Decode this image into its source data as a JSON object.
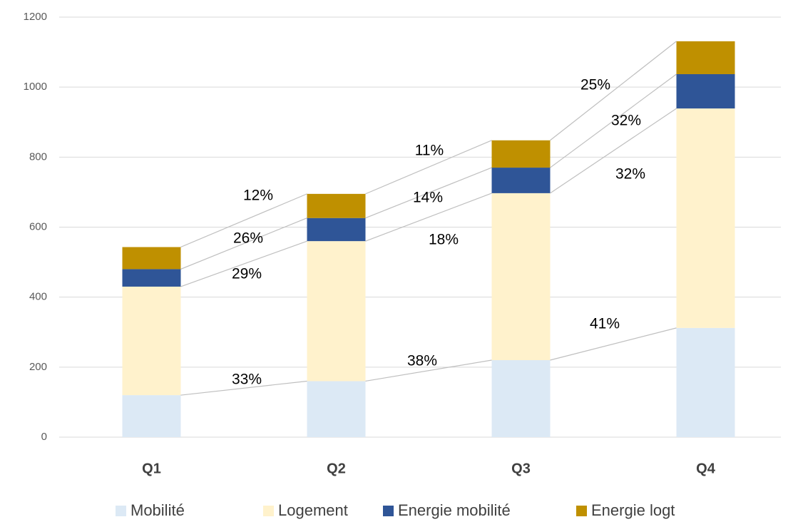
{
  "chart_data": {
    "type": "bar",
    "stacked": true,
    "categories": [
      "Q1",
      "Q2",
      "Q3",
      "Q4"
    ],
    "series": [
      {
        "name": "Mobilité",
        "color": "#dce9f5",
        "values": [
          120,
          160,
          220,
          312
        ]
      },
      {
        "name": "Logement",
        "color": "#fff2cc",
        "values": [
          310,
          400,
          477,
          627
        ]
      },
      {
        "name": "Energie mobilité",
        "color": "#2f5597",
        "values": [
          50,
          66,
          73,
          98
        ]
      },
      {
        "name": "Energie logt",
        "color": "#bf9000",
        "values": [
          63,
          69,
          78,
          94
        ]
      }
    ],
    "ylim": [
      0,
      1200
    ],
    "yticks": [
      0,
      200,
      400,
      600,
      800,
      1000,
      1200
    ],
    "grid": true,
    "legend": "bottom",
    "annotations": [
      "12%",
      "26%",
      "29%",
      "33%",
      "11%",
      "14%",
      "18%",
      "38%",
      "25%",
      "32%",
      "32%",
      "41%"
    ]
  }
}
